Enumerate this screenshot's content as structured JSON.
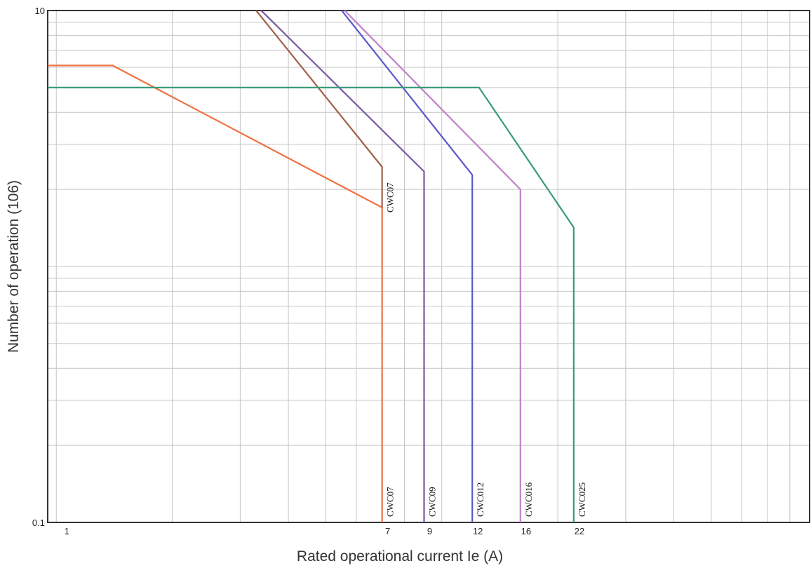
{
  "chart_data": {
    "type": "line",
    "title": "",
    "xlabel": "Rated operational current Ie (A)",
    "ylabel": "Number of operation (106)",
    "x_scale": "log",
    "y_scale": "log",
    "xlim": [
      0.95,
      90
    ],
    "ylim": [
      0.1,
      10
    ],
    "grid": true,
    "x_tick_labels": [
      {
        "value": 1,
        "text": "1"
      },
      {
        "value": 7,
        "text": "7"
      },
      {
        "value": 9,
        "text": "9"
      },
      {
        "value": 12,
        "text": "12"
      },
      {
        "value": 16,
        "text": "16"
      },
      {
        "value": 22,
        "text": "22"
      }
    ],
    "y_tick_labels": [
      {
        "value": 10,
        "text": "10"
      },
      {
        "value": 0.1,
        "text": "0.1"
      }
    ],
    "series": [
      {
        "name": "CWC07",
        "color": "#f07040",
        "label_at": "bottom",
        "points": [
          [
            0.95,
            6.1
          ],
          [
            1.4,
            6.1
          ],
          [
            7,
            1.7
          ],
          [
            7,
            0.1
          ]
        ]
      },
      {
        "name": "CWC07",
        "color": "#a0604a",
        "label_at": "middle",
        "points": [
          [
            3.3,
            10
          ],
          [
            7,
            2.45
          ],
          [
            7,
            1.7
          ]
        ]
      },
      {
        "name": "CWC09",
        "color": "#7a5aa0",
        "label_at": "bottom",
        "points": [
          [
            3.4,
            10
          ],
          [
            9,
            2.35
          ],
          [
            9,
            0.1
          ]
        ]
      },
      {
        "name": "CWC012",
        "color": "#5a5ac8",
        "label_at": "bottom",
        "points": [
          [
            5.5,
            10
          ],
          [
            12,
            2.28
          ],
          [
            12,
            0.1
          ]
        ]
      },
      {
        "name": "CWC016",
        "color": "#c080c8",
        "label_at": "bottom",
        "points": [
          [
            5.6,
            10
          ],
          [
            16,
            2.0
          ],
          [
            16,
            0.1
          ]
        ]
      },
      {
        "name": "CWC025",
        "color": "#3a9a7a",
        "label_at": "bottom",
        "points": [
          [
            0.95,
            5.0
          ],
          [
            12.5,
            5.0
          ],
          [
            22,
            1.42
          ],
          [
            22,
            0.1
          ]
        ]
      }
    ]
  }
}
